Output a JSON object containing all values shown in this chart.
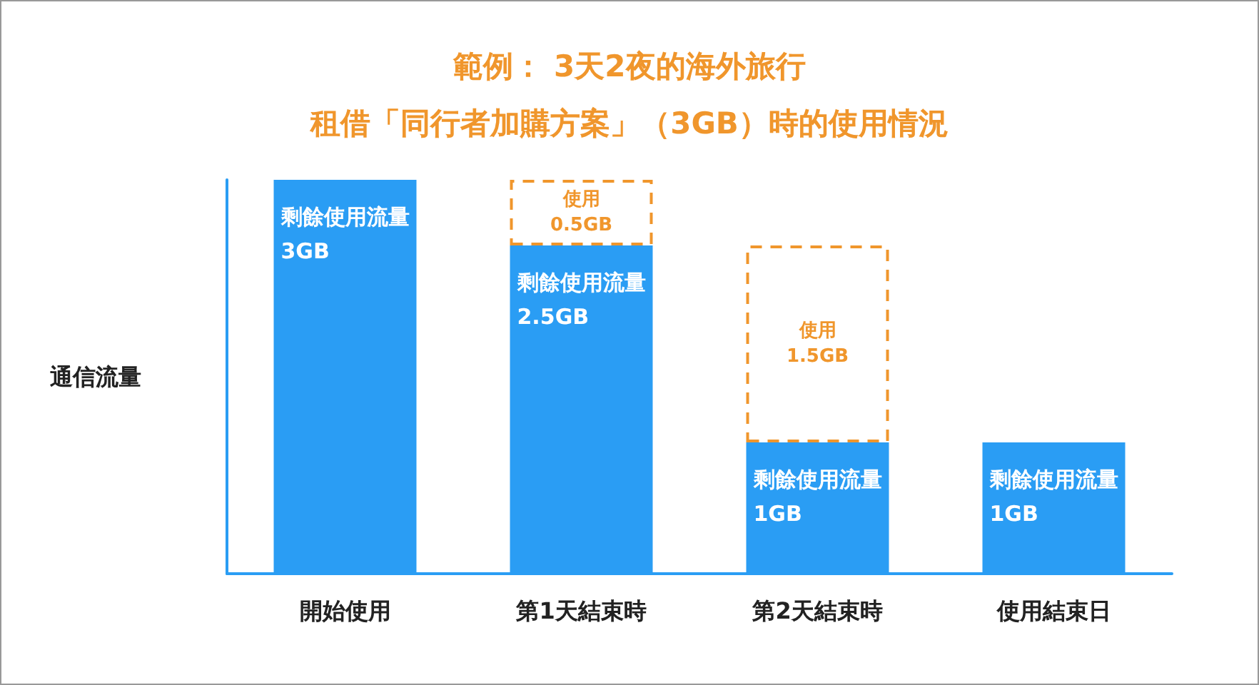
{
  "chart_data": {
    "type": "bar",
    "title": "範例： 3天2夜的海外旅行",
    "subtitle": "租借「同行者加購方案」（3GB）時的使用情況",
    "ylabel": "通信流量",
    "categories": [
      "開始使用",
      "第1天結束時",
      "第2天結束時",
      "使用結束日"
    ],
    "stacked": true,
    "grid": false,
    "series": [
      {
        "color": "#2a9df4",
        "values": [
          3,
          2.5,
          1,
          1
        ],
        "value_labels": [
          "剩餘使用流量\n3GB",
          "剩餘使用流量\n2.5GB",
          "剩餘使用流量\n1GB",
          "剩餘使用流量\n1GB"
        ]
      },
      {
        "color": "#f0962c",
        "line_style": "dashed",
        "values": [
          null,
          0.5,
          1.5,
          null
        ],
        "value_labels": [
          null,
          "使用\n0.5GB",
          "使用\n1.5GB",
          null
        ]
      }
    ]
  }
}
